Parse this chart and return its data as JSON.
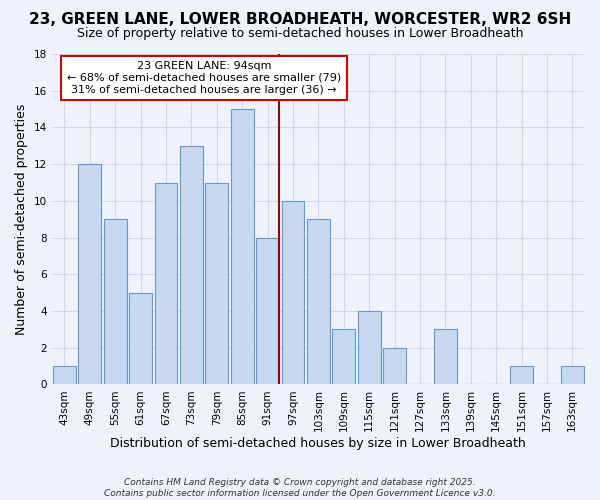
{
  "title_line1": "23, GREEN LANE, LOWER BROADHEATH, WORCESTER, WR2 6SH",
  "title_line2": "Size of property relative to semi-detached houses in Lower Broadheath",
  "xlabel": "Distribution of semi-detached houses by size in Lower Broadheath",
  "ylabel": "Number of semi-detached properties",
  "categories": [
    "43sqm",
    "49sqm",
    "55sqm",
    "61sqm",
    "67sqm",
    "73sqm",
    "79sqm",
    "85sqm",
    "91sqm",
    "97sqm",
    "103sqm",
    "109sqm",
    "115sqm",
    "121sqm",
    "127sqm",
    "133sqm",
    "139sqm",
    "145sqm",
    "151sqm",
    "157sqm",
    "163sqm"
  ],
  "values": [
    1,
    12,
    9,
    5,
    11,
    13,
    11,
    15,
    8,
    10,
    9,
    3,
    4,
    2,
    0,
    3,
    0,
    0,
    1,
    0,
    1
  ],
  "bar_color": "#c8d8ef",
  "bar_edge_color": "#6699cc",
  "vline_index": 8,
  "vline_color": "#990000",
  "annotation_title": "23 GREEN LANE: 94sqm",
  "annotation_line1": "← 68% of semi-detached houses are smaller (79)",
  "annotation_line2": "31% of semi-detached houses are larger (36) →",
  "annotation_box_facecolor": "#ffffff",
  "annotation_box_edgecolor": "#cc0000",
  "ylim": [
    0,
    18
  ],
  "yticks": [
    0,
    2,
    4,
    6,
    8,
    10,
    12,
    14,
    16,
    18
  ],
  "footer_line1": "Contains HM Land Registry data © Crown copyright and database right 2025.",
  "footer_line2": "Contains public sector information licensed under the Open Government Licence v3.0.",
  "background_color": "#eef2fb",
  "grid_color": "#d0d8ee",
  "title_fontsize": 11,
  "subtitle_fontsize": 9,
  "axis_label_fontsize": 9,
  "tick_fontsize": 7.5,
  "annotation_fontsize": 8,
  "footer_fontsize": 6.5
}
